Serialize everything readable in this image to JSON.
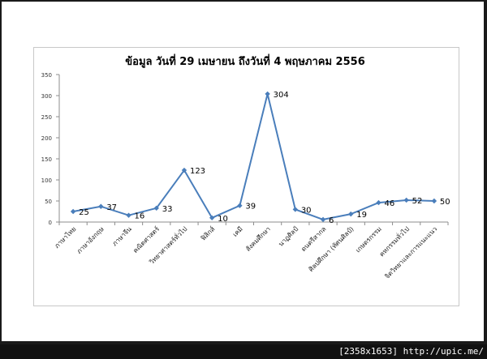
{
  "chart_data": {
    "type": "line",
    "title": "ข้อมูล วันที่ 29 เมษายน ถึงวันที่ 4 พฤษภาคม 2556",
    "xlabel": "",
    "ylabel": "",
    "categories": [
      "ภาษาไทย",
      "ภาษาอังกฤษ",
      "ภาษาจีน",
      "คณิตศาสตร์",
      "วิทยาศาสตร์ทั่วไป",
      "ฟิสิกส์",
      "เคมี",
      "สังคมศึกษา",
      "นาฏศิลป์",
      "ดนตรีสากล",
      "ศิลปศึกษา (ทัศนศิลป์)",
      "เกษตรกรรม",
      "คหกรรมทั่วไป",
      "จิตวิทยาและการแนะแนว"
    ],
    "series": [
      {
        "values": [
          25,
          37,
          16,
          33,
          123,
          10,
          39,
          304,
          30,
          6,
          19,
          46,
          52,
          50
        ]
      }
    ],
    "data_labels": [
      "25",
      "37",
      "16",
      "33",
      "123",
      "10",
      "39",
      "304",
      "30",
      "6",
      "19",
      "46",
      "52",
      "50"
    ],
    "ylim": [
      0,
      350
    ],
    "yticks": [
      "0",
      "50",
      "100",
      "150",
      "200",
      "250",
      "300",
      "350"
    ],
    "grid": false,
    "legend": "none",
    "line_color": "#4a7ebb"
  },
  "watermark": "[2358x1653] http://upic.me/"
}
